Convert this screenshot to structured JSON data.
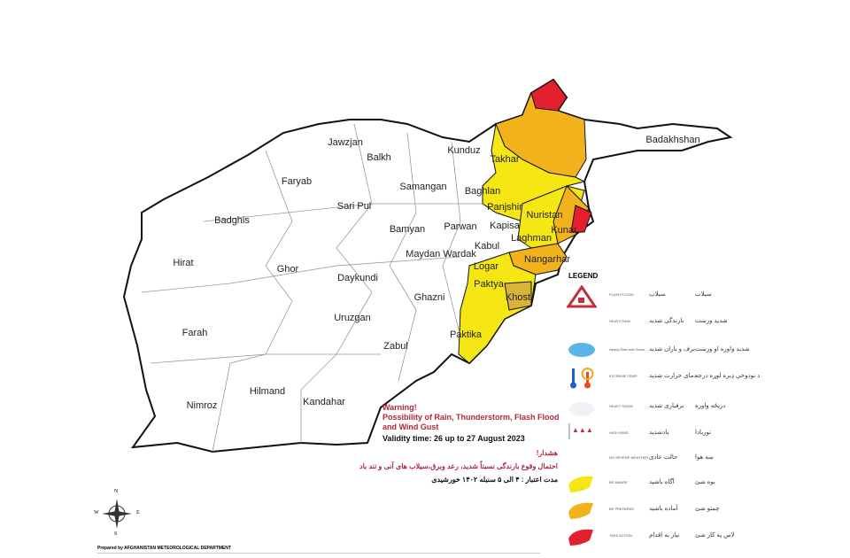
{
  "provinces": [
    "Jawzjan",
    "Balkh",
    "Kunduz",
    "Takhar",
    "Badakhshan",
    "Faryab",
    "Samangan",
    "Baghlan",
    "Sari Pul",
    "Badghis",
    "Panjshir",
    "Nuristan",
    "Parwan",
    "Kapisa",
    "Kunar",
    "Bamyan",
    "Laghman",
    "Hirat",
    "Ghor",
    "Maydan Wardak",
    "Kabul",
    "Nangarhar",
    "Logar",
    "Daykundi",
    "Ghazni",
    "Paktya",
    "Khost",
    "Farah",
    "Uruzgan",
    "Paktika",
    "Zabul",
    "Nimroz",
    "Hilmand",
    "Kandahar"
  ],
  "warning_levels": {
    "be_aware": {
      "color": "#f5e614",
      "provinces": [
        "Takhar",
        "Baghlan",
        "Panjshir",
        "Kapisa",
        "Laghman",
        "Nuristan",
        "Logar",
        "Paktya",
        "Paktika"
      ]
    },
    "be_prepared": {
      "color": "#f2b21c",
      "provinces": [
        "Badakhshan",
        "Kunar",
        "Nangarhar",
        "Khost"
      ]
    },
    "take_action": {
      "color": "#e3202e",
      "provinces": [
        "Badakhshan",
        "Kunar"
      ]
    }
  },
  "legend": {
    "title": "LEGEND",
    "items": [
      {
        "icon": "flash-flood-icon",
        "en": "FLASH FLOOD",
        "fa": "سیلاب",
        "ps": "سیلاب"
      },
      {
        "icon": "none",
        "en": "HEAVY RAIN",
        "fa": "بارندگی شدید",
        "ps": "شدید ورښت"
      },
      {
        "icon": "rain-snow-cloud-icon",
        "en": "Heavy Rain with Snow",
        "fa": "برف و باران شدید",
        "ps": "شدید واوره او ورښت"
      },
      {
        "icon": "extreme-temp-icon",
        "en": "EXTREME TEMP",
        "fa": "دمای حرارت شدید",
        "ps": "د تودوخې ډېره لوړه درجه"
      },
      {
        "icon": "snow-cloud-icon",
        "en": "HEAVY SNOW",
        "fa": "برفباری شدید",
        "ps": "دریځه واوره"
      },
      {
        "icon": "high-wind-icon",
        "en": "HIGH WIND",
        "fa": "بادشدید",
        "ps": "توربادا"
      },
      {
        "icon": "none",
        "en": "NO SEVERE WEATHER",
        "fa": "حالت عادی",
        "ps": "ښه هوا"
      },
      {
        "icon": "yellow-map-icon",
        "en": "BE AWARE",
        "fa": "آگاه باشید",
        "ps": "بوه شئ"
      },
      {
        "icon": "orange-map-icon",
        "en": "BE PREPARED",
        "fa": "آماده باشید",
        "ps": "چمتو شئ"
      },
      {
        "icon": "red-map-icon",
        "en": "TAKE ACTION",
        "fa": "نیاز به اقدام",
        "ps": "لاس په کار شئ"
      }
    ]
  },
  "warning": {
    "title": "Warning!",
    "line1": "Possibility of Rain, Thunderstorm, Flash Flood",
    "line2": "and Wind Gust",
    "validity": "Validity time:  26 up to 27 August 2023",
    "fa_title": "هشدار!",
    "fa_text": "احتمال وقوع بارندگی نسبتاً شدید، رعد وبرق،سیلاب های آنی و تند باد",
    "fa_validity": "مدت اعتبار : ۴ الی ۵ سنبله ۱۴۰۲ خورشیدی"
  },
  "compass": {
    "n": "N",
    "s": "S",
    "e": "E",
    "w": "W"
  },
  "credit": "Prepared by AFGHANISTAN METEOROLOGICAL DEPARTMENT"
}
